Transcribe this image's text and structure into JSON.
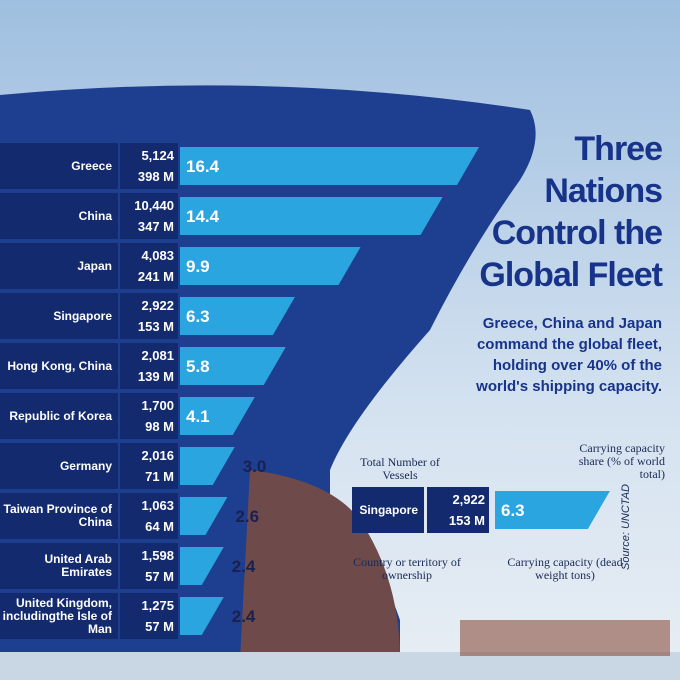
{
  "chart_data": {
    "type": "bar",
    "title": "Three Nations Control the Global Fleet",
    "subtitle": "Greece, China and Japan command the global fleet, holding over 40% of the world's shipping capacity.",
    "categories": [
      "Greece",
      "China",
      "Japan",
      "Singapore",
      "Hong Kong, China",
      "Republic of Korea",
      "Germany",
      "Taiwan Province of China",
      "United Arab Emirates",
      "United Kingdom, includingthe Isle of Man"
    ],
    "vessels": {
      "values": [
        5124,
        10440,
        4083,
        2922,
        2081,
        1700,
        2016,
        1063,
        1598,
        1275
      ],
      "value_labels": [
        "5,124",
        "10,440",
        "4,083",
        "2,922",
        "2,081",
        "1,700",
        "2,016",
        "1,063",
        "1,598",
        "1,275"
      ]
    },
    "capacity": {
      "values": [
        398000000,
        347000000,
        241000000,
        153000000,
        139000000,
        98000000,
        71000000,
        64000000,
        57000000,
        57000000
      ],
      "value_labels": [
        "398 M",
        "347 M",
        "241 M",
        "153 M",
        "139 M",
        "98 M",
        "71 M",
        "64 M",
        "57 M",
        "57 M"
      ]
    },
    "share": {
      "values": [
        16.4,
        14.4,
        9.9,
        6.3,
        5.8,
        4.1,
        3.0,
        2.6,
        2.4,
        2.4
      ],
      "value_labels": [
        "16.4",
        "14.4",
        "9.9",
        "6.3",
        "5.8",
        "4.1",
        "3.0",
        "2.6",
        "2.4",
        "2.4"
      ]
    },
    "xlim": [
      0,
      17
    ],
    "color": "#2aa5e0",
    "key": {
      "vessels": "Total Number of Vessels",
      "share": "Carrying capacity share (% of world total)",
      "country": "Country or territory of ownership",
      "capacity": "Carrying capacity (dead weight tons)"
    },
    "source": "Source: UNCTAD"
  }
}
